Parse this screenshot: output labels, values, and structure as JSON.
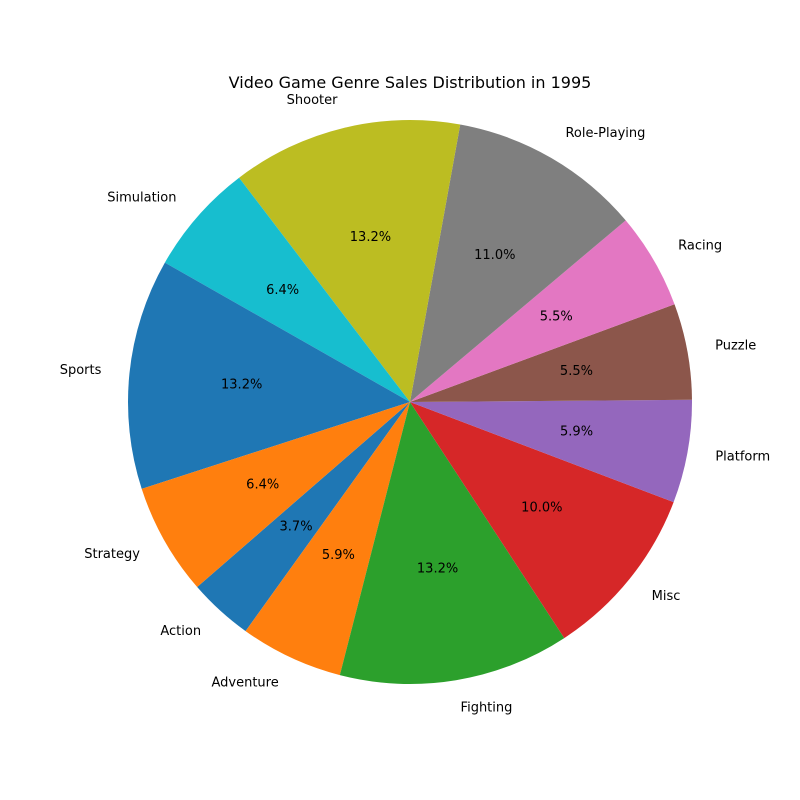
{
  "chart_data": {
    "type": "pie",
    "title": "Video Game Genre Sales Distribution in 1995",
    "start_angle_deg": 221,
    "direction": "counterclockwise",
    "slices": [
      {
        "label": "Action",
        "value": 3.7,
        "pct_text": "3.7%",
        "color": "#1f77b4"
      },
      {
        "label": "Adventure",
        "value": 5.9,
        "pct_text": "5.9%",
        "color": "#ff7f0e"
      },
      {
        "label": "Fighting",
        "value": 13.2,
        "pct_text": "13.2%",
        "color": "#2ca02c"
      },
      {
        "label": "Misc",
        "value": 10.0,
        "pct_text": "10.0%",
        "color": "#d62728"
      },
      {
        "label": "Platform",
        "value": 5.9,
        "pct_text": "5.9%",
        "color": "#9467bd"
      },
      {
        "label": "Puzzle",
        "value": 5.5,
        "pct_text": "5.5%",
        "color": "#8c564b"
      },
      {
        "label": "Racing",
        "value": 5.5,
        "pct_text": "5.5%",
        "color": "#e377c2"
      },
      {
        "label": "Role-Playing",
        "value": 11.0,
        "pct_text": "11.0%",
        "color": "#7f7f7f"
      },
      {
        "label": "Shooter",
        "value": 13.2,
        "pct_text": "13.2%",
        "color": "#bcbd22"
      },
      {
        "label": "Simulation",
        "value": 6.4,
        "pct_text": "6.4%",
        "color": "#17becf"
      },
      {
        "label": "Sports",
        "value": 13.2,
        "pct_text": "13.2%",
        "color": "#1f77b4"
      },
      {
        "label": "Strategy",
        "value": 6.4,
        "pct_text": "6.4%",
        "color": "#ff7f0e"
      }
    ]
  }
}
